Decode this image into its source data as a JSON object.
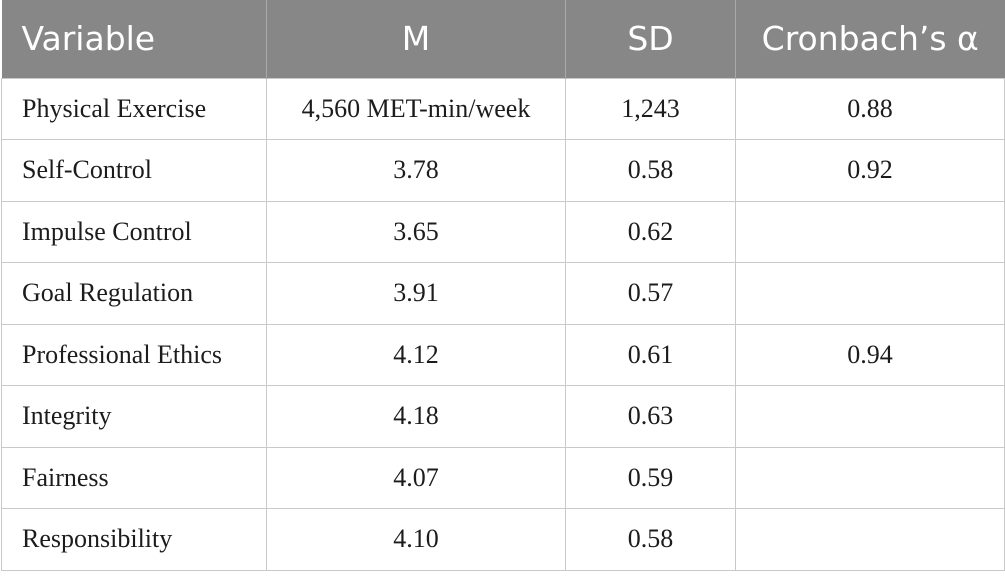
{
  "table": {
    "headers": [
      "Variable",
      "M",
      "SD",
      "Cronbach’s α"
    ],
    "rows": [
      {
        "variable": "Physical Exercise",
        "m": "4,560 MET-min/week",
        "sd": "1,243",
        "alpha": "0.88"
      },
      {
        "variable": "Self-Control",
        "m": "3.78",
        "sd": "0.58",
        "alpha": "0.92"
      },
      {
        "variable": "Impulse Control",
        "m": "3.65",
        "sd": "0.62",
        "alpha": ""
      },
      {
        "variable": "Goal Regulation",
        "m": "3.91",
        "sd": "0.57",
        "alpha": ""
      },
      {
        "variable": "Professional Ethics",
        "m": "4.12",
        "sd": "0.61",
        "alpha": "0.94"
      },
      {
        "variable": "Integrity",
        "m": "4.18",
        "sd": "0.63",
        "alpha": ""
      },
      {
        "variable": "Fairness",
        "m": "4.07",
        "sd": "0.59",
        "alpha": ""
      },
      {
        "variable": "Responsibility",
        "m": "4.10",
        "sd": "0.58",
        "alpha": ""
      }
    ]
  },
  "colors": {
    "header_background": "#878787",
    "header_text": "#ffffff",
    "grid_lines": "#c9c9c9"
  }
}
